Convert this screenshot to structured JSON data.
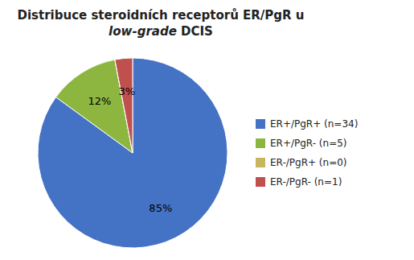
{
  "chart_data": {
    "type": "pie",
    "title": "Distribuce steroidních receptorů ER/PgR u",
    "subtitle": "low-grade DCIS",
    "categories": [
      "ER+/PgR+ (n=34)",
      "ER+/PgR- (n=5)",
      "ER-/PgR+ (n=0)",
      "ER-/PgR- (n=1)"
    ],
    "values": [
      85,
      12,
      0.0001,
      3
    ],
    "value_labels": [
      "85%",
      "12%",
      null,
      "3%"
    ],
    "colors": [
      "#4472C4",
      "#8DB640",
      "#C8B560",
      "#C0504D"
    ],
    "data_labels": true,
    "legend": "right"
  }
}
